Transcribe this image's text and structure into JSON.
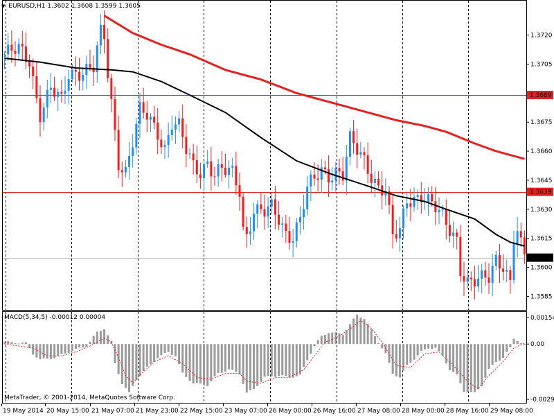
{
  "header": {
    "symbol": "EURUSD,H1",
    "open": "1.3602",
    "high": "1.3608",
    "low": "1.3599",
    "close": "1.3605"
  },
  "macd_header": {
    "label": "MACD(5,34,5)",
    "main": "-0.00012",
    "signal": "0.00004"
  },
  "copyright": "MetaTrader, © 2001-2014, MetaQuotes Software Corp.",
  "colors": {
    "background": "#ffffff",
    "bull": "#1e8fff",
    "bear": "#ff1a1a",
    "ma_fast": "#000000",
    "ma_slow": "#e62020",
    "level": "#e02020",
    "grid": "#000000",
    "histogram": "#9a9a9a",
    "signal": "#ff2020"
  },
  "chart_data": [
    {
      "type": "candlestick",
      "symbol": "EURUSD",
      "timeframe": "H1",
      "ylim": [
        1.3578,
        1.3732
      ],
      "y_ticks": [
        "1.3720",
        "1.3705",
        "1.3675",
        "1.3660",
        "1.3645",
        "1.3630",
        "1.3615",
        "1.3600",
        "1.3585"
      ],
      "x_ticks": [
        "19 May 2014",
        "20 May 15:00",
        "21 May 07:00",
        "21 May 23:00",
        "22 May 15:00",
        "23 May 07:00",
        "26 May 00:00",
        "26 May 16:00",
        "27 May 08:00",
        "28 May 00:00",
        "28 May 16:00",
        "29 May 08:00"
      ],
      "levels": [
        {
          "label": "1.3689",
          "value": 1.3689
        },
        {
          "label": "1.3639",
          "value": 1.3639
        }
      ],
      "current_price": {
        "label": "1.3605",
        "value": 1.3605
      },
      "close_path": [
        [
          0,
          1.371
        ],
        [
          4,
          1.3712
        ],
        [
          7,
          1.3707
        ],
        [
          9,
          1.3688
        ],
        [
          10,
          1.368
        ],
        [
          13,
          1.3692
        ],
        [
          16,
          1.3685
        ],
        [
          18,
          1.37
        ],
        [
          22,
          1.3702
        ],
        [
          25,
          1.3703
        ],
        [
          26,
          1.3712
        ],
        [
          27,
          1.372
        ],
        [
          28,
          1.3718
        ],
        [
          29,
          1.37
        ],
        [
          31,
          1.367
        ],
        [
          32,
          1.3655
        ],
        [
          34,
          1.365
        ],
        [
          36,
          1.3665
        ],
        [
          38,
          1.368
        ],
        [
          40,
          1.3678
        ],
        [
          43,
          1.367
        ],
        [
          45,
          1.3662
        ],
        [
          47,
          1.3675
        ],
        [
          49,
          1.3672
        ],
        [
          51,
          1.366
        ],
        [
          53,
          1.3652
        ],
        [
          55,
          1.365
        ],
        [
          57,
          1.3655
        ],
        [
          59,
          1.3648
        ],
        [
          61,
          1.365
        ],
        [
          64,
          1.3648
        ],
        [
          66,
          1.364
        ],
        [
          67,
          1.362
        ],
        [
          68,
          1.3617
        ],
        [
          70,
          1.363
        ],
        [
          73,
          1.3628
        ],
        [
          75,
          1.363
        ],
        [
          77,
          1.3625
        ],
        [
          79,
          1.3618
        ],
        [
          81,
          1.3617
        ],
        [
          83,
          1.3625
        ],
        [
          85,
          1.364
        ],
        [
          87,
          1.3645
        ],
        [
          89,
          1.365
        ],
        [
          91,
          1.3648
        ],
        [
          93,
          1.365
        ],
        [
          95,
          1.3648
        ],
        [
          97,
          1.3665
        ],
        [
          99,
          1.366
        ],
        [
          101,
          1.3655
        ],
        [
          103,
          1.3648
        ],
        [
          105,
          1.3642
        ],
        [
          107,
          1.364
        ],
        [
          109,
          1.3615
        ],
        [
          111,
          1.3618
        ],
        [
          113,
          1.3635
        ],
        [
          115,
          1.3636
        ],
        [
          117,
          1.3638
        ],
        [
          119,
          1.3634
        ],
        [
          121,
          1.363
        ],
        [
          123,
          1.3625
        ],
        [
          125,
          1.362
        ],
        [
          127,
          1.3615
        ],
        [
          128,
          1.36
        ],
        [
          130,
          1.3592
        ],
        [
          132,
          1.3592
        ],
        [
          134,
          1.3593
        ],
        [
          136,
          1.3595
        ],
        [
          138,
          1.3605
        ],
        [
          140,
          1.3602
        ],
        [
          142,
          1.3592
        ],
        [
          143,
          1.3615
        ],
        [
          144,
          1.3618
        ],
        [
          145,
          1.361
        ],
        [
          146,
          1.3605
        ]
      ],
      "ma_fast": [
        [
          0,
          1.3708
        ],
        [
          10,
          1.3706
        ],
        [
          20,
          1.3703
        ],
        [
          30,
          1.3702
        ],
        [
          36,
          1.3701
        ],
        [
          44,
          1.3696
        ],
        [
          52,
          1.3689
        ],
        [
          62,
          1.368
        ],
        [
          72,
          1.3667
        ],
        [
          82,
          1.3655
        ],
        [
          92,
          1.3648
        ],
        [
          102,
          1.3642
        ],
        [
          110,
          1.3637
        ],
        [
          118,
          1.3634
        ],
        [
          124,
          1.363
        ],
        [
          132,
          1.3625
        ],
        [
          138,
          1.3617
        ],
        [
          142,
          1.3613
        ],
        [
          146,
          1.3611
        ]
      ],
      "ma_slow": [
        [
          28,
          1.373
        ],
        [
          36,
          1.3721
        ],
        [
          44,
          1.3715
        ],
        [
          52,
          1.371
        ],
        [
          62,
          1.3702
        ],
        [
          72,
          1.3697
        ],
        [
          82,
          1.369
        ],
        [
          92,
          1.3685
        ],
        [
          102,
          1.368
        ],
        [
          110,
          1.3676
        ],
        [
          118,
          1.3673
        ],
        [
          124,
          1.367
        ],
        [
          132,
          1.3664
        ],
        [
          138,
          1.366
        ],
        [
          146,
          1.3656
        ]
      ]
    },
    {
      "type": "histogram",
      "name": "MACD(5,34,5)",
      "ylim": [
        -0.003,
        0.0016
      ],
      "y_ticks": [
        "0.00154",
        "0.00",
        "-0.00293"
      ],
      "main_path": [
        [
          0,
          0.0001
        ],
        [
          6,
          5e-05
        ],
        [
          8,
          -0.0005
        ],
        [
          10,
          -0.0008
        ],
        [
          14,
          -0.0007
        ],
        [
          18,
          -0.0004
        ],
        [
          23,
          -0.0001
        ],
        [
          26,
          0.0006
        ],
        [
          28,
          0.0008
        ],
        [
          30,
          0.0001
        ],
        [
          31,
          -0.001
        ],
        [
          33,
          -0.002
        ],
        [
          35,
          -0.0025
        ],
        [
          37,
          -0.0018
        ],
        [
          40,
          -0.0012
        ],
        [
          43,
          -0.0007
        ],
        [
          46,
          -0.0004
        ],
        [
          48,
          -0.0006
        ],
        [
          50,
          -0.0015
        ],
        [
          53,
          -0.002
        ],
        [
          57,
          -0.0021
        ],
        [
          60,
          -0.0015
        ],
        [
          63,
          -0.0013
        ],
        [
          66,
          -0.0015
        ],
        [
          68,
          -0.0025
        ],
        [
          70,
          -0.0023
        ],
        [
          73,
          -0.0017
        ],
        [
          77,
          -0.0016
        ],
        [
          80,
          -0.0017
        ],
        [
          83,
          -0.0016
        ],
        [
          85,
          -0.0008
        ],
        [
          87,
          -0.0001
        ],
        [
          89,
          0.0004
        ],
        [
          91,
          0.0006
        ],
        [
          95,
          0.0005
        ],
        [
          97,
          0.001
        ],
        [
          99,
          0.0015
        ],
        [
          101,
          0.0013
        ],
        [
          103,
          0.0007
        ],
        [
          105,
          0.0001
        ],
        [
          107,
          -0.0005
        ],
        [
          109,
          -0.0015
        ],
        [
          111,
          -0.0017
        ],
        [
          113,
          -0.0011
        ],
        [
          117,
          -0.0004
        ],
        [
          119,
          -0.0002
        ],
        [
          121,
          -0.0002
        ],
        [
          123,
          -0.0006
        ],
        [
          125,
          -0.0013
        ],
        [
          127,
          -0.0016
        ],
        [
          129,
          -0.0024
        ],
        [
          132,
          -0.0025
        ],
        [
          134,
          -0.0021
        ],
        [
          136,
          -0.0013
        ],
        [
          138,
          -0.0009
        ],
        [
          140,
          -0.0007
        ],
        [
          142,
          -0.0002
        ],
        [
          143,
          0.0003
        ],
        [
          144,
          0.0002
        ],
        [
          146,
          -0.00012
        ]
      ],
      "signal_path": [
        [
          0,
          0.0
        ],
        [
          8,
          -0.0002
        ],
        [
          12,
          -0.0006
        ],
        [
          16,
          -0.0006
        ],
        [
          20,
          -0.0004
        ],
        [
          24,
          -0.0001
        ],
        [
          28,
          0.0003
        ],
        [
          30,
          0.0001
        ],
        [
          32,
          -0.0007
        ],
        [
          34,
          -0.0016
        ],
        [
          36,
          -0.002
        ],
        [
          38,
          -0.0016
        ],
        [
          42,
          -0.0009
        ],
        [
          46,
          -0.0006
        ],
        [
          50,
          -0.001
        ],
        [
          54,
          -0.0017
        ],
        [
          58,
          -0.0018
        ],
        [
          62,
          -0.0015
        ],
        [
          66,
          -0.0015
        ],
        [
          68,
          -0.0019
        ],
        [
          72,
          -0.002
        ],
        [
          76,
          -0.0017
        ],
        [
          80,
          -0.0017
        ],
        [
          84,
          -0.0013
        ],
        [
          87,
          -0.0006
        ],
        [
          90,
          0.0001
        ],
        [
          94,
          0.0004
        ],
        [
          98,
          0.0009
        ],
        [
          100,
          0.0012
        ],
        [
          103,
          0.0008
        ],
        [
          106,
          0.0001
        ],
        [
          110,
          -0.0011
        ],
        [
          114,
          -0.0012
        ],
        [
          118,
          -0.0005
        ],
        [
          122,
          -0.0004
        ],
        [
          126,
          -0.0011
        ],
        [
          130,
          -0.0019
        ],
        [
          133,
          -0.0023
        ],
        [
          136,
          -0.0016
        ],
        [
          140,
          -0.0009
        ],
        [
          143,
          -0.0002
        ],
        [
          146,
          4e-05
        ]
      ]
    }
  ]
}
